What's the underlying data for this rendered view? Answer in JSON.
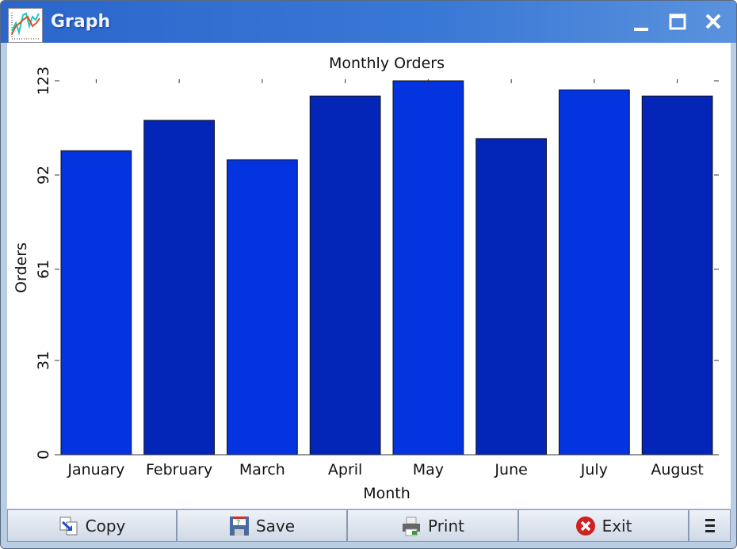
{
  "window": {
    "title": "Graph",
    "app_icon": "line-graph-icon"
  },
  "chart_data": {
    "type": "bar",
    "title": "Monthly Orders",
    "xlabel": "Month",
    "ylabel": "Orders",
    "categories": [
      "January",
      "February",
      "March",
      "April",
      "May",
      "June",
      "July",
      "August"
    ],
    "values": [
      100,
      110,
      97,
      118,
      123,
      104,
      120,
      118
    ],
    "ylim": [
      0,
      123
    ],
    "yticks": [
      "0",
      "31",
      "61",
      "92",
      "123"
    ],
    "ytick_values": [
      0,
      31,
      61,
      92,
      123
    ],
    "grid": false,
    "colors": [
      "#0433e0",
      "#0325b8"
    ]
  },
  "buttons": [
    {
      "label": "Copy",
      "icon": "copy-icon"
    },
    {
      "label": "Save",
      "icon": "save-icon"
    },
    {
      "label": "Print",
      "icon": "printer-icon"
    },
    {
      "label": "Exit",
      "icon": "exit-icon"
    }
  ],
  "menu_icon": "hamburger-menu-icon"
}
